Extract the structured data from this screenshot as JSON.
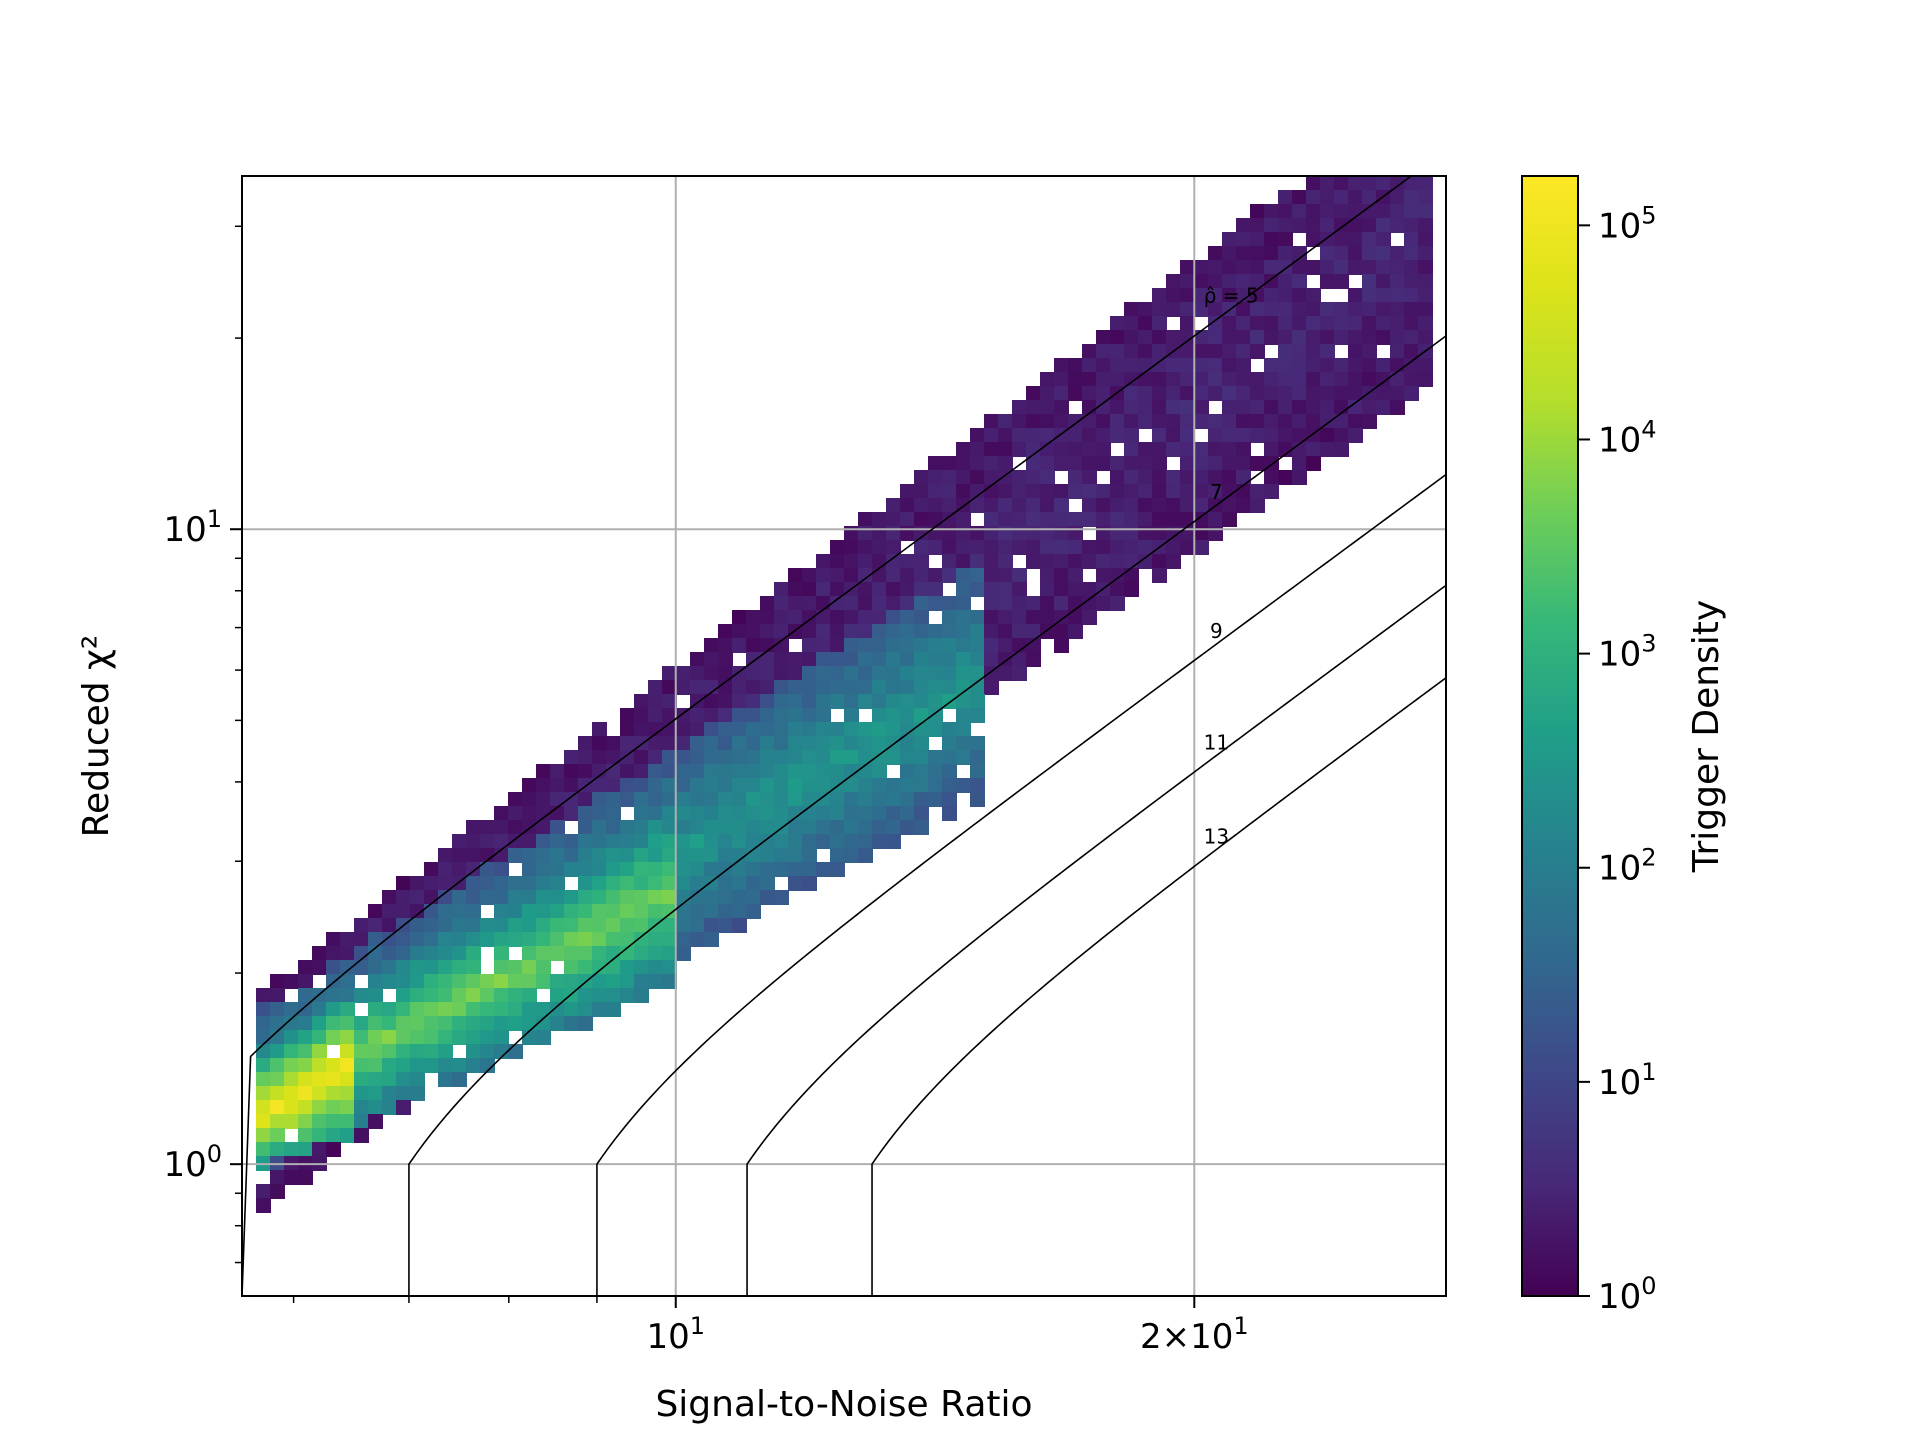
{
  "chart_data": {
    "type": "heatmap",
    "subtype": "hexbin",
    "xlabel": "Signal-to-Noise Ratio",
    "ylabel": "Reduced χ²",
    "x_scale": "log",
    "y_scale": "log",
    "xlim": [
      5.6,
      28.0
    ],
    "ylim": [
      0.62,
      36.0
    ],
    "x_ticks": [
      {
        "value": 10,
        "base": "10",
        "exp": "1"
      },
      {
        "value": 20,
        "base": "2×10",
        "exp": "1"
      }
    ],
    "y_ticks": [
      {
        "value": 1,
        "base": "10",
        "exp": "0"
      },
      {
        "value": 10,
        "base": "10",
        "exp": "1"
      }
    ],
    "grid": true,
    "colorbar": {
      "label": "Trigger Density",
      "scale": "log",
      "range": [
        1,
        170000
      ],
      "colormap": "viridis",
      "ticks": [
        {
          "value": 1,
          "base": "10",
          "exp": "0"
        },
        {
          "value": 10,
          "base": "10",
          "exp": "1"
        },
        {
          "value": 100,
          "base": "10",
          "exp": "2"
        },
        {
          "value": 1000,
          "base": "10",
          "exp": "3"
        },
        {
          "value": 10000,
          "base": "10",
          "exp": "4"
        },
        {
          "value": 100000,
          "base": "10",
          "exp": "5"
        }
      ]
    },
    "contours": [
      {
        "label": "ρ̂ = 5",
        "rho": 5.0
      },
      {
        "label": "7",
        "rho": 7.0
      },
      {
        "label": "9",
        "rho": 9.0
      },
      {
        "label": "11",
        "rho": 11.0
      },
      {
        "label": "13",
        "rho": 13.0
      }
    ],
    "density_regions": [
      {
        "x": [
          5.6,
          27.0
        ],
        "y_center": [
          1.25,
          30.0
        ],
        "density": 3
      },
      {
        "x": [
          5.6,
          15.0
        ],
        "y_center": [
          1.3,
          6.0
        ],
        "density": 300
      },
      {
        "x": [
          5.6,
          10.0
        ],
        "y_center": [
          1.25,
          2.8
        ],
        "density": 5000
      },
      {
        "x": [
          5.6,
          6.5
        ],
        "y_center": [
          1.2,
          1.5
        ],
        "density": 100000
      }
    ]
  }
}
